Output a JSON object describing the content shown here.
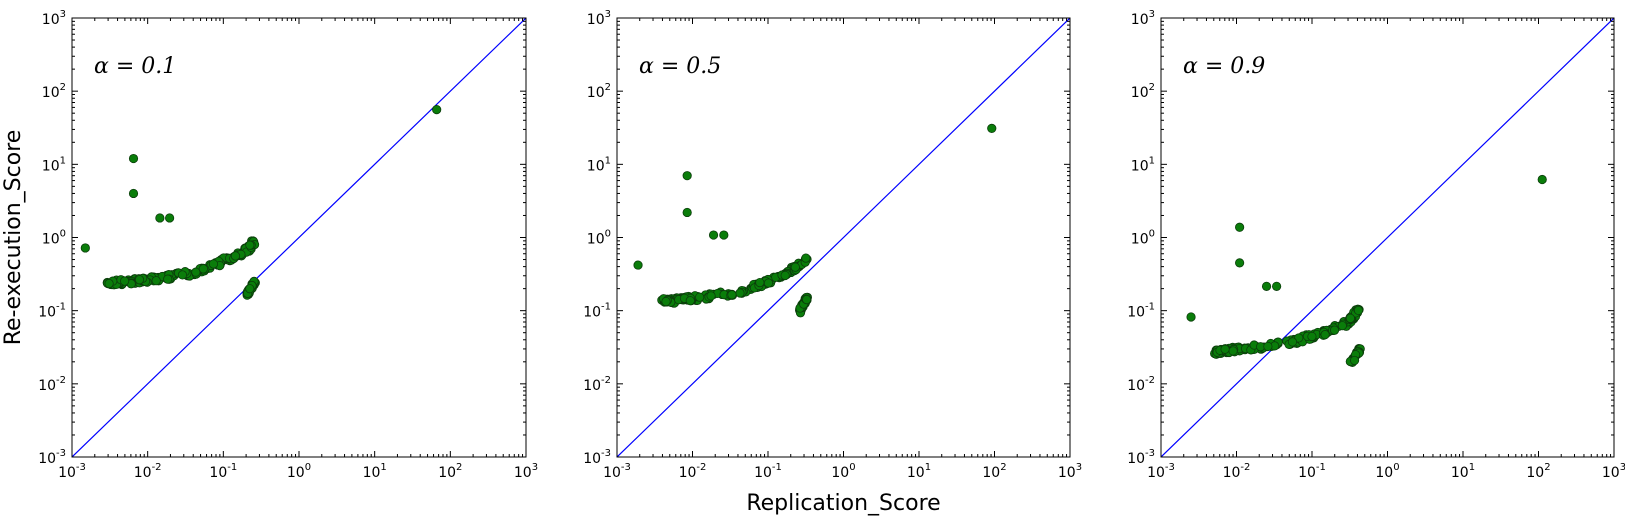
{
  "chart_data": [
    {
      "type": "scatter",
      "annotation": "α = 0.1",
      "xscale": "log",
      "yscale": "log",
      "xlim": [
        0.001,
        1000
      ],
      "ylim": [
        0.001,
        1000
      ],
      "xticks": [
        -3,
        -2,
        -1,
        0,
        1,
        2,
        3
      ],
      "yticks": [
        -3,
        -2,
        -1,
        0,
        1,
        2,
        3
      ],
      "reference_line": "y = x",
      "colors": {
        "points": "#0a7d0a",
        "line": "#0000ff"
      },
      "outliers": [
        [
          0.0015,
          0.72
        ],
        [
          0.0065,
          12
        ],
        [
          0.0065,
          4.0
        ],
        [
          0.0145,
          1.85
        ],
        [
          0.0195,
          1.85
        ],
        [
          66,
          56
        ]
      ],
      "main_cluster": [
        [
          0.003,
          0.245
        ],
        [
          0.004,
          0.245
        ],
        [
          0.006,
          0.25
        ],
        [
          0.01,
          0.265
        ],
        [
          0.02,
          0.29
        ],
        [
          0.04,
          0.33
        ],
        [
          0.07,
          0.4
        ],
        [
          0.1,
          0.48
        ],
        [
          0.15,
          0.56
        ],
        [
          0.22,
          0.72
        ],
        [
          0.26,
          0.92
        ]
      ],
      "low_cluster": [
        [
          0.21,
          0.17
        ],
        [
          0.23,
          0.2
        ],
        [
          0.25,
          0.23
        ],
        [
          0.26,
          0.26
        ]
      ],
      "xlabel": "",
      "ylabel": "Re-execution_Score"
    },
    {
      "type": "scatter",
      "annotation": "α = 0.5",
      "xscale": "log",
      "yscale": "log",
      "xlim": [
        0.001,
        1000
      ],
      "ylim": [
        0.001,
        1000
      ],
      "xticks": [
        -3,
        -2,
        -1,
        0,
        1,
        2,
        3
      ],
      "yticks": [
        -3,
        -2,
        -1,
        0,
        1,
        2,
        3
      ],
      "reference_line": "y = x",
      "colors": {
        "points": "#0a7d0a",
        "line": "#0000ff"
      },
      "outliers": [
        [
          0.0019,
          0.42
        ],
        [
          0.0085,
          7.0
        ],
        [
          0.0085,
          2.2
        ],
        [
          0.019,
          1.08
        ],
        [
          0.026,
          1.08
        ],
        [
          92,
          31
        ]
      ],
      "main_cluster": [
        [
          0.004,
          0.135
        ],
        [
          0.005,
          0.135
        ],
        [
          0.007,
          0.14
        ],
        [
          0.012,
          0.15
        ],
        [
          0.02,
          0.16
        ],
        [
          0.04,
          0.18
        ],
        [
          0.07,
          0.22
        ],
        [
          0.1,
          0.25
        ],
        [
          0.15,
          0.3
        ],
        [
          0.25,
          0.4
        ],
        [
          0.34,
          0.52
        ]
      ],
      "low_cluster": [
        [
          0.26,
          0.095
        ],
        [
          0.28,
          0.11
        ],
        [
          0.3,
          0.125
        ],
        [
          0.32,
          0.14
        ],
        [
          0.33,
          0.155
        ]
      ],
      "xlabel": "Replication_Score",
      "ylabel": ""
    },
    {
      "type": "scatter",
      "annotation": "α = 0.9",
      "xscale": "log",
      "yscale": "log",
      "xlim": [
        0.001,
        1000
      ],
      "ylim": [
        0.001,
        1000
      ],
      "xticks": [
        -3,
        -2,
        -1,
        0,
        1,
        2,
        3
      ],
      "yticks": [
        -3,
        -2,
        -1,
        0,
        1,
        2,
        3
      ],
      "reference_line": "y = x",
      "colors": {
        "points": "#0a7d0a",
        "line": "#0000ff"
      },
      "outliers": [
        [
          0.0025,
          0.082
        ],
        [
          0.011,
          1.38
        ],
        [
          0.011,
          0.45
        ],
        [
          0.025,
          0.215
        ],
        [
          0.034,
          0.215
        ],
        [
          112,
          6.2
        ]
      ],
      "main_cluster": [
        [
          0.005,
          0.027
        ],
        [
          0.007,
          0.028
        ],
        [
          0.01,
          0.03
        ],
        [
          0.02,
          0.032
        ],
        [
          0.04,
          0.035
        ],
        [
          0.07,
          0.04
        ],
        [
          0.1,
          0.045
        ],
        [
          0.15,
          0.05
        ],
        [
          0.2,
          0.058
        ],
        [
          0.3,
          0.068
        ],
        [
          0.34,
          0.08
        ],
        [
          0.42,
          0.105
        ]
      ],
      "low_cluster": [
        [
          0.33,
          0.019
        ],
        [
          0.36,
          0.022
        ],
        [
          0.4,
          0.026
        ],
        [
          0.43,
          0.03
        ]
      ],
      "xlabel": "",
      "ylabel": ""
    }
  ]
}
